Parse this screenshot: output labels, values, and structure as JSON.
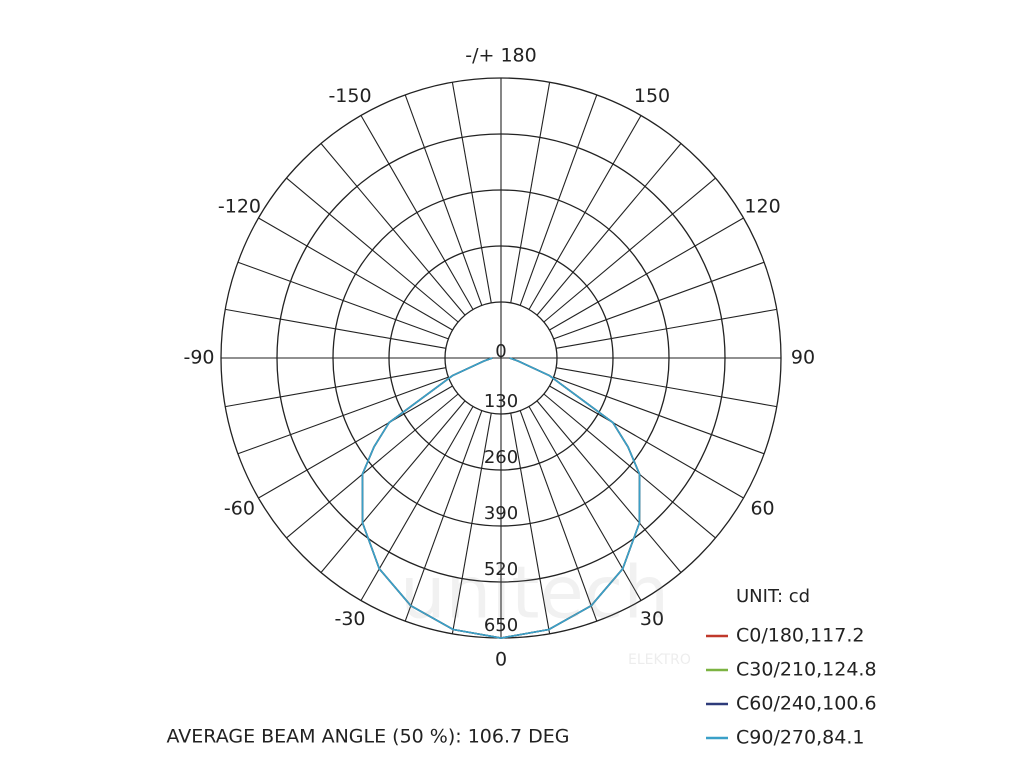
{
  "chart_data": {
    "type": "polar",
    "unit_label": "UNIT: cd",
    "footer": "AVERAGE BEAM ANGLE (50 %): 106.7 DEG",
    "watermark": {
      "brand": "unitech",
      "sub": "ELEKTRO"
    },
    "x": [
      -90,
      -80,
      -70,
      -60,
      -55,
      -50,
      -40,
      -30,
      -20,
      -10,
      0,
      10,
      20,
      30,
      40,
      50,
      55,
      60,
      70,
      80,
      90
    ],
    "series": [
      {
        "name": "C0/180,117.2",
        "color": "#c0392b",
        "values": [
          20,
          40,
          120,
          300,
          360,
          420,
          500,
          565,
          612,
          640,
          650,
          640,
          612,
          565,
          500,
          420,
          360,
          300,
          120,
          40,
          20
        ]
      },
      {
        "name": "C30/210,124.8",
        "color": "#7cb342",
        "values": [
          20,
          40,
          120,
          300,
          360,
          420,
          500,
          565,
          612,
          640,
          650,
          640,
          612,
          565,
          500,
          420,
          360,
          300,
          120,
          40,
          20
        ]
      },
      {
        "name": "C60/240,100.6",
        "color": "#2e3b7a",
        "values": [
          20,
          40,
          120,
          300,
          360,
          420,
          500,
          565,
          612,
          640,
          650,
          640,
          612,
          565,
          500,
          420,
          360,
          300,
          120,
          40,
          20
        ]
      },
      {
        "name": "C90/270,84.1",
        "color": "#3aa0c8",
        "values": [
          20,
          40,
          120,
          300,
          360,
          420,
          500,
          565,
          612,
          640,
          650,
          640,
          612,
          565,
          500,
          420,
          360,
          300,
          120,
          40,
          20
        ]
      }
    ],
    "rlim": [
      0,
      650
    ],
    "rticks": [
      0,
      130,
      260,
      390,
      520,
      650
    ],
    "xticks": [
      {
        "value": 180,
        "label": "-/+ 180"
      },
      150,
      120,
      90,
      60,
      30,
      0,
      -30,
      -60,
      -90,
      -120,
      -150
    ]
  }
}
